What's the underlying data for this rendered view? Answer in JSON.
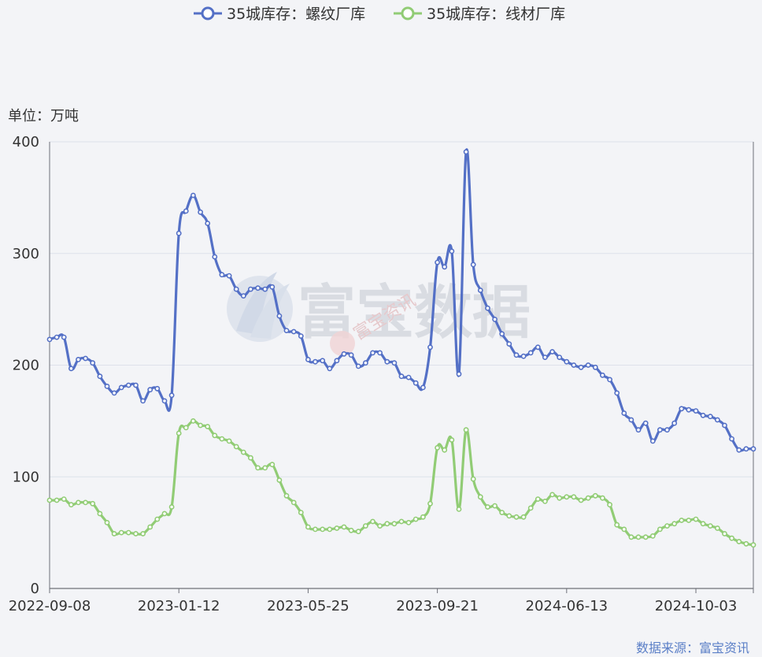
{
  "chart_data": {
    "type": "line",
    "unit_label": "单位：万吨",
    "source": "数据来源：富宝资讯",
    "watermark": "富宝数据",
    "watermark_sub": "富宝资讯",
    "ylim": [
      0,
      400
    ],
    "yticks": [
      0,
      100,
      200,
      300,
      400
    ],
    "xtick_labels": [
      "2022-09-08",
      "2023-01-12",
      "2023-05-25",
      "2023-09-21",
      "2024-06-13",
      "2024-10-03"
    ],
    "xtick_index": [
      0,
      18,
      36,
      54,
      72,
      90
    ],
    "series": [
      {
        "name": "35城库存：螺纹厂库",
        "color": "#5470c6",
        "values": [
          223,
          225,
          225,
          197,
          205,
          206,
          202,
          190,
          181,
          175,
          180,
          182,
          182,
          168,
          178,
          179,
          168,
          173,
          318,
          338,
          352,
          337,
          327,
          297,
          281,
          280,
          268,
          262,
          268,
          269,
          268,
          270,
          244,
          231,
          230,
          226,
          205,
          203,
          204,
          197,
          204,
          210,
          209,
          199,
          202,
          211,
          211,
          203,
          202,
          190,
          189,
          184,
          180,
          216,
          292,
          288,
          302,
          192,
          391,
          290,
          267,
          251,
          241,
          228,
          219,
          209,
          208,
          211,
          216,
          207,
          212,
          207,
          203,
          200,
          198,
          200,
          198,
          191,
          187,
          175,
          157,
          151,
          142,
          148,
          132,
          142,
          142,
          148,
          161,
          160,
          159,
          155,
          154,
          151,
          146,
          134,
          124,
          125,
          125
        ]
      },
      {
        "name": "35城库存：线材厂库",
        "color": "#91cc75",
        "values": [
          79,
          79,
          80,
          75,
          77,
          77,
          76,
          67,
          59,
          49,
          50,
          50,
          49,
          49,
          55,
          62,
          67,
          73,
          139,
          144,
          150,
          146,
          145,
          137,
          134,
          132,
          127,
          122,
          117,
          108,
          108,
          111,
          97,
          83,
          77,
          68,
          55,
          53,
          53,
          53,
          54,
          55,
          52,
          51,
          56,
          60,
          56,
          58,
          58,
          60,
          59,
          62,
          64,
          76,
          126,
          124,
          133,
          71,
          142,
          98,
          82,
          73,
          74,
          68,
          65,
          64,
          64,
          72,
          80,
          78,
          84,
          81,
          82,
          82,
          79,
          81,
          83,
          81,
          75,
          57,
          53,
          46,
          46,
          46,
          47,
          53,
          56,
          58,
          61,
          61,
          62,
          58,
          56,
          54,
          49,
          45,
          42,
          40,
          39
        ]
      }
    ]
  }
}
